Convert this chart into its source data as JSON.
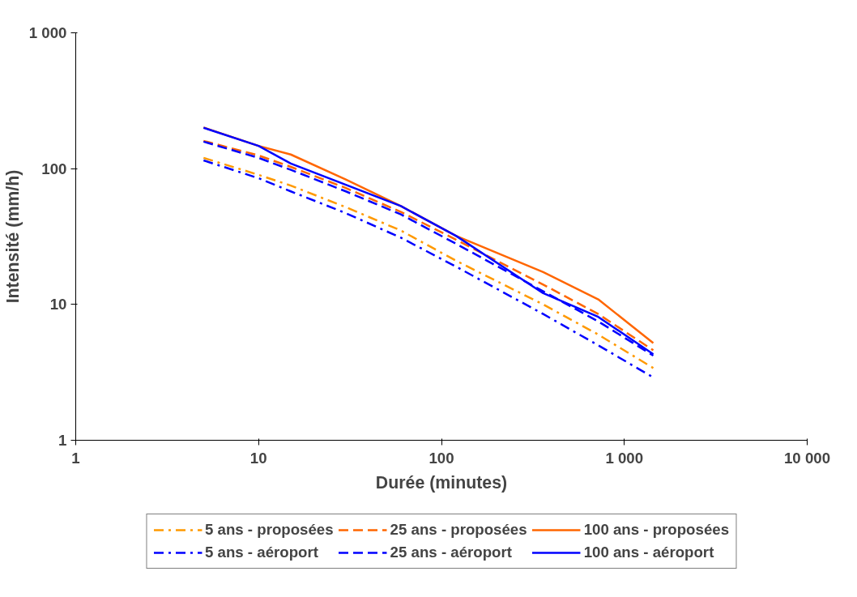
{
  "chart_data": {
    "type": "line",
    "xlabel": "Durée (minutes)",
    "ylabel": "Intensité (mm/h)",
    "log": "xy",
    "grid": false,
    "legend": "bottom",
    "x": [
      5,
      10,
      15,
      30,
      60,
      120,
      360,
      720,
      1440
    ],
    "xlim": [
      1,
      10000
    ],
    "xticks": [
      1,
      10,
      100,
      {
        "value": 1000,
        "label": "1 000"
      },
      {
        "value": 10000,
        "label": "10 000"
      }
    ],
    "ylim": [
      1,
      1000
    ],
    "yticks": [
      1,
      10,
      100,
      {
        "value": 1000,
        "label": "1 000"
      }
    ],
    "series": [
      {
        "name": "5 ans - proposées",
        "color": "#ff9900",
        "line_style": "dashdot",
        "values": [
          120,
          90,
          75,
          52,
          35,
          21,
          10,
          6,
          3.4
        ]
      },
      {
        "name": "25 ans - proposées",
        "color": "#ff6600",
        "line_style": "dashed",
        "values": [
          160,
          125,
          103,
          72,
          48,
          30,
          14,
          8.5,
          4.6
        ]
      },
      {
        "name": "100 ans - proposées",
        "color": "#ff6600",
        "line_style": "solid",
        "values": [
          201,
          147,
          127,
          83,
          53,
          32,
          17.3,
          10.9,
          5.2
        ]
      },
      {
        "name": "5 ans - aéroport",
        "color": "#0000ff",
        "line_style": "dashdot",
        "values": [
          115,
          85,
          68,
          47,
          31,
          19,
          8.5,
          5,
          2.9
        ]
      },
      {
        "name": "25 ans - aéroport",
        "color": "#0000ff",
        "line_style": "dashed",
        "values": [
          158,
          120,
          98,
          68,
          46,
          28,
          12.5,
          7.5,
          4.2
        ]
      },
      {
        "name": "100 ans - aéroport",
        "color": "#0000ff",
        "line_style": "solid",
        "values": [
          200,
          147,
          109,
          76,
          53,
          32,
          12.1,
          8.1,
          4.3
        ]
      }
    ]
  }
}
